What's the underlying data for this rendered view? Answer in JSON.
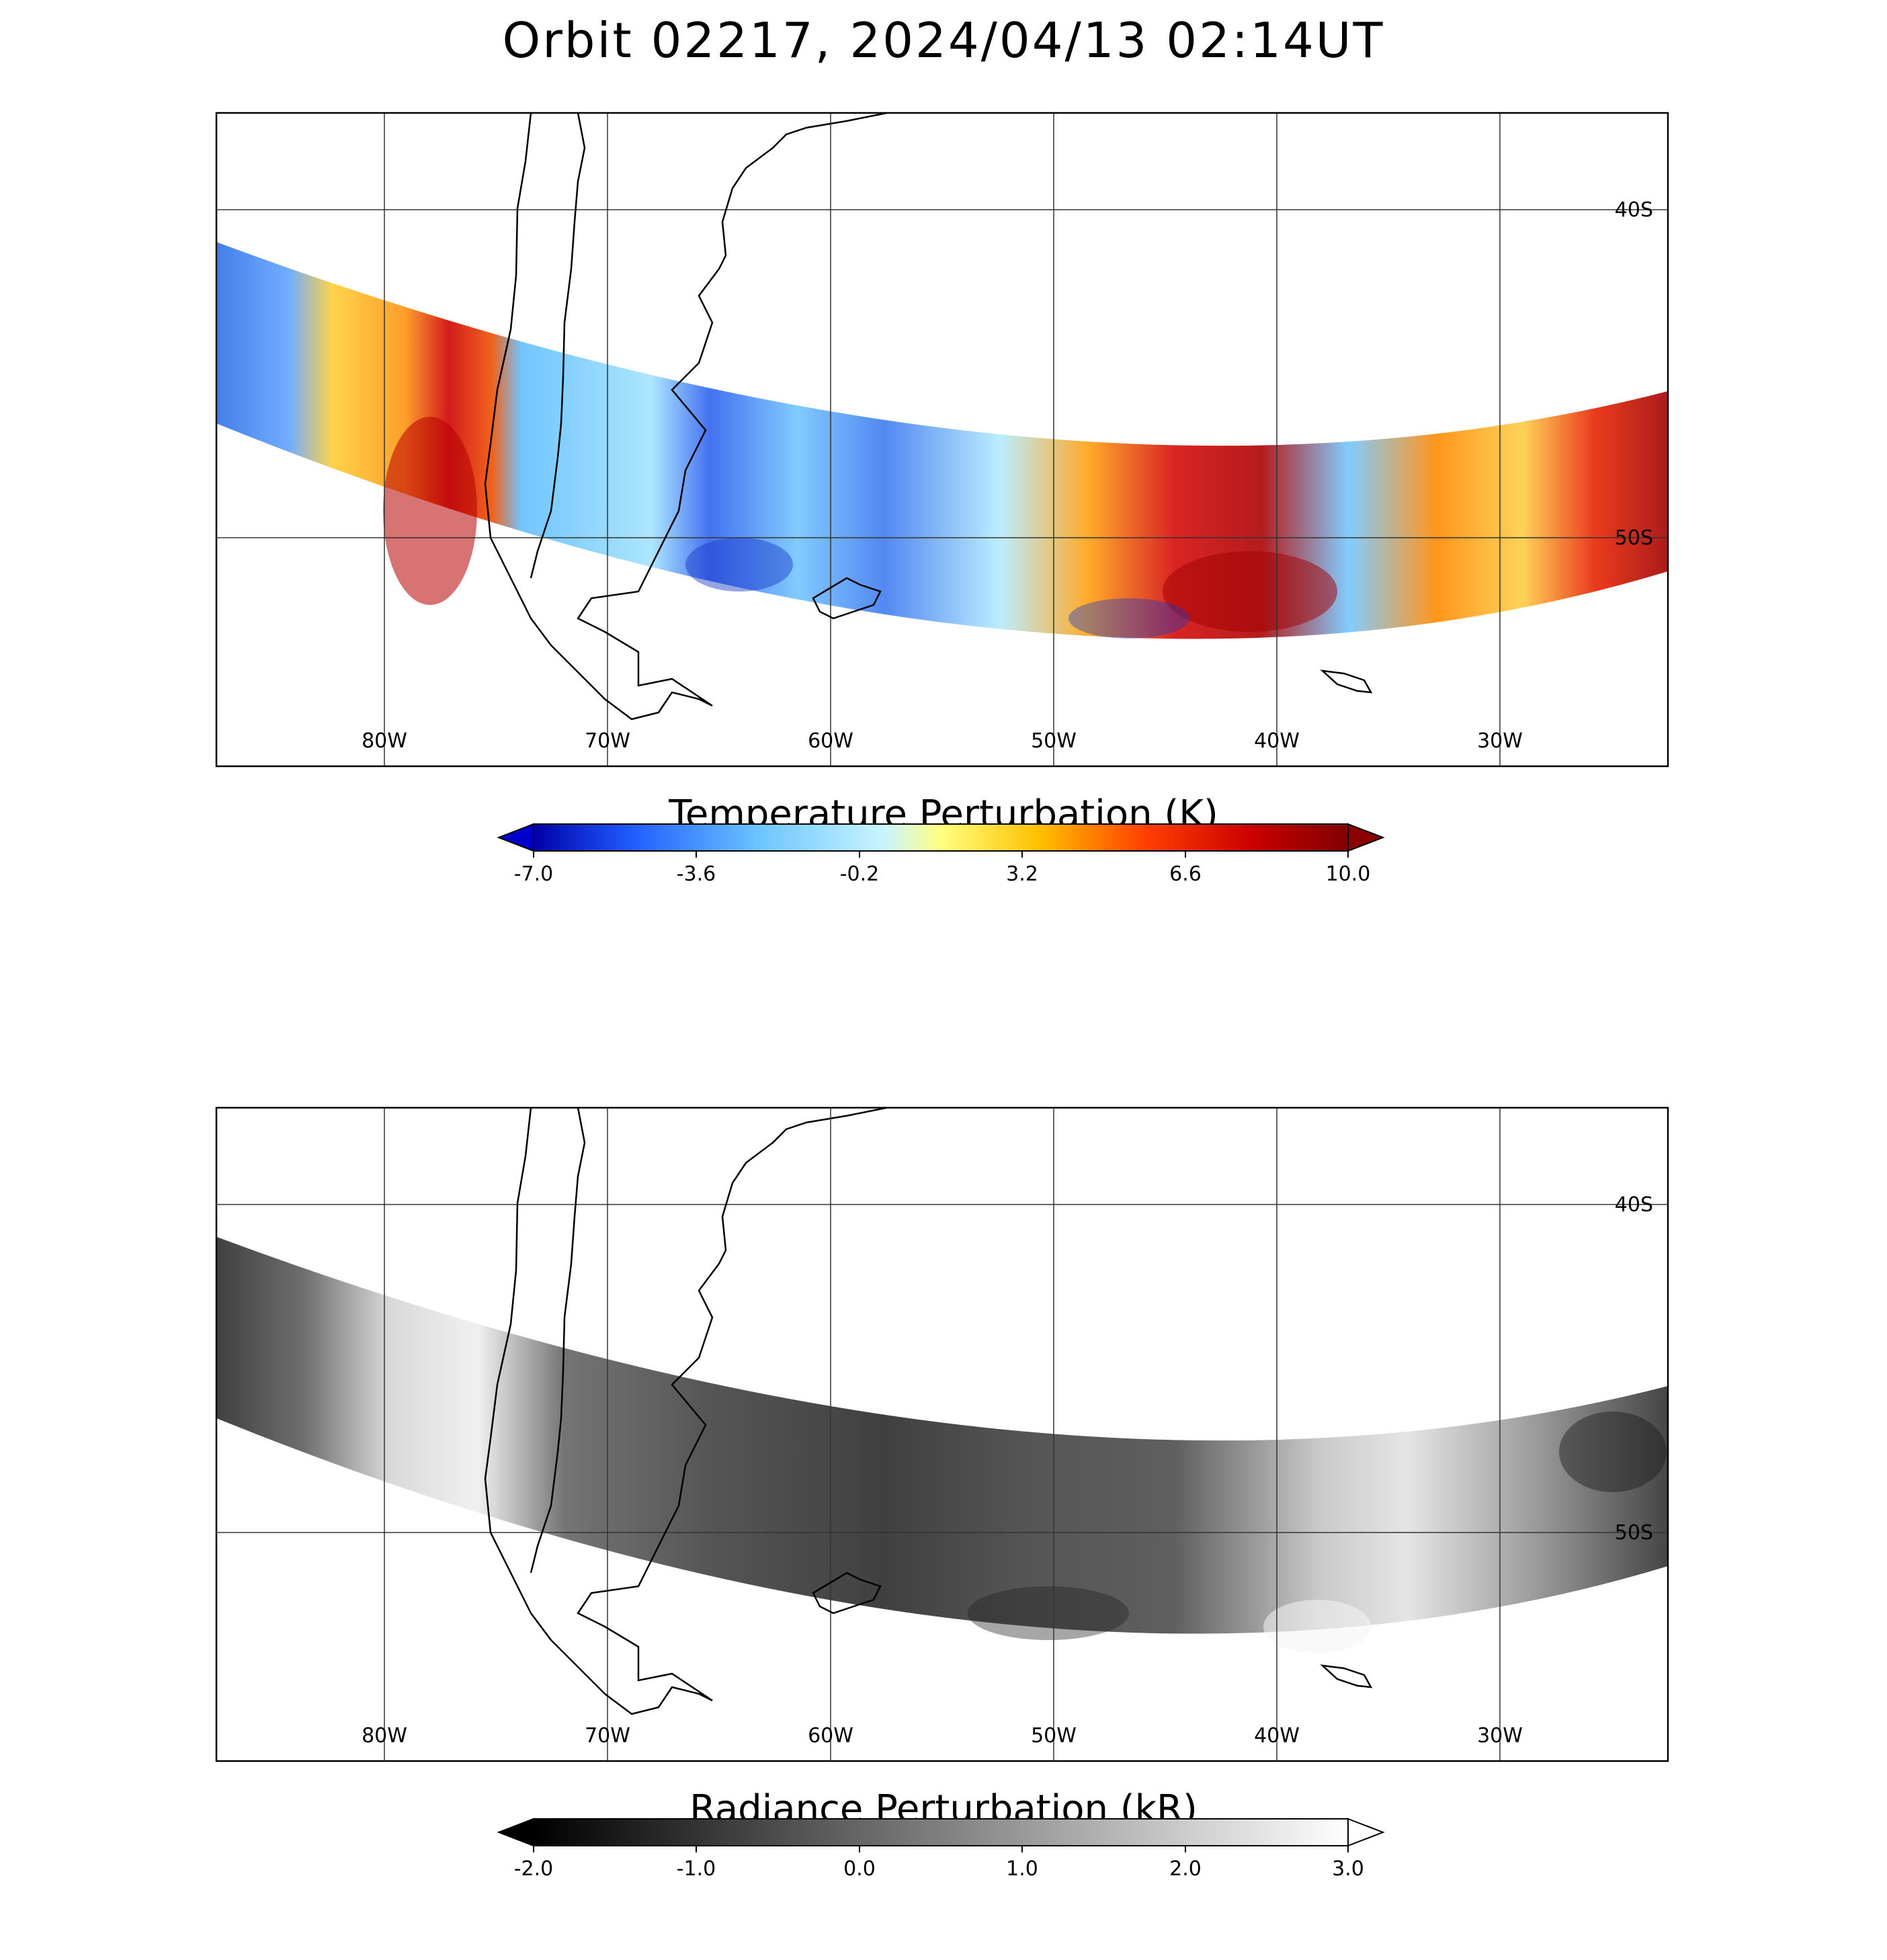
{
  "title": "Orbit 02217, 2024/04/13 02:14UT",
  "map": {
    "lon_range": [
      -87.5,
      -22.5
    ],
    "lat_range": [
      -37,
      -56.5
    ],
    "lon_grid": [
      -80,
      -70,
      -60,
      -50,
      -40,
      -30
    ],
    "lat_grid": [
      -40,
      -50
    ],
    "lon_labels": [
      "80W",
      "70W",
      "60W",
      "50W",
      "40W",
      "30W"
    ],
    "lat_labels": [
      "40S",
      "50S"
    ]
  },
  "panels": [
    {
      "name": "temperature",
      "colorbar_title": "Temperature Perturbation (K)",
      "colorbar_ticks": [
        "-7.0",
        "-3.6",
        "-0.2",
        "3.2",
        "6.6",
        "10.0"
      ],
      "colorbar_range": [
        -7.0,
        10.0
      ],
      "colormap": [
        "#0000a8",
        "#1f5cff",
        "#6ec6ff",
        "#c9f4ff",
        "#ffff80",
        "#ffc000",
        "#ff4000",
        "#cc0000",
        "#800000"
      ],
      "extend_low_color": "#0000cc",
      "extend_high_color": "#8b0000"
    },
    {
      "name": "radiance",
      "colorbar_title": "Radiance Perturbation (kR)",
      "colorbar_ticks": [
        "-2.0",
        "-1.0",
        "0.0",
        "1.0",
        "2.0",
        "3.0"
      ],
      "colorbar_range": [
        -2.0,
        3.0
      ],
      "colormap": [
        "#000000",
        "#404040",
        "#808080",
        "#bfbfbf",
        "#ffffff"
      ],
      "extend_low_color": "#000000",
      "extend_high_color": "#ffffff"
    }
  ]
}
